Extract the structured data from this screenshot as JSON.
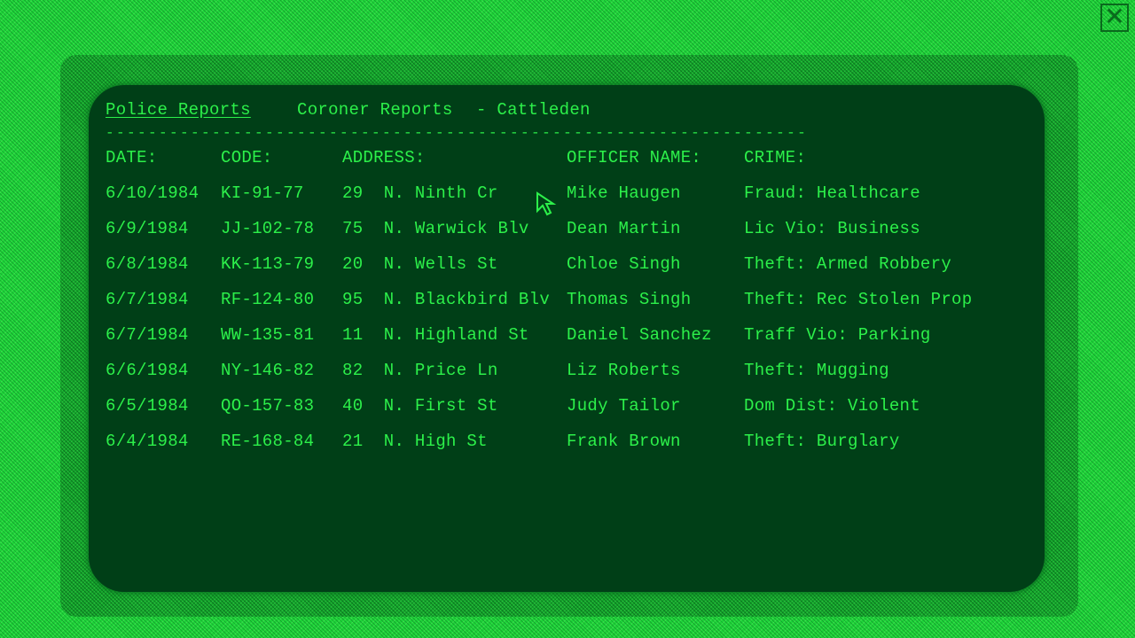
{
  "window": {
    "close_icon": "close-icon"
  },
  "nav": {
    "tabs": [
      {
        "label": "Police Reports",
        "active": true
      },
      {
        "label": "Coroner Reports",
        "active": false
      }
    ],
    "location": "- Cattleden",
    "divider": "------------------------------------------------------------------"
  },
  "table": {
    "headers": [
      "DATE:",
      "CODE:",
      "ADDRESS:",
      "OFFICER NAME:",
      "CRIME:"
    ],
    "rows": [
      [
        "6/10/1984",
        "KI-91-77",
        "29  N. Ninth Cr",
        "Mike Haugen",
        "Fraud: Healthcare"
      ],
      [
        "6/9/1984",
        "JJ-102-78",
        "75  N. Warwick Blv",
        "Dean Martin",
        "Lic Vio: Business"
      ],
      [
        "6/8/1984",
        "KK-113-79",
        "20  N. Wells St",
        "Chloe Singh",
        "Theft: Armed Robbery"
      ],
      [
        "6/7/1984",
        "RF-124-80",
        "95  N. Blackbird Blv",
        "Thomas Singh",
        "Theft: Rec Stolen Prop"
      ],
      [
        "6/7/1984",
        "WW-135-81",
        "11  N. Highland St",
        "Daniel Sanchez",
        "Traff Vio: Parking"
      ],
      [
        "6/6/1984",
        "NY-146-82",
        "82  N. Price Ln",
        "Liz Roberts",
        "Theft: Mugging"
      ],
      [
        "6/5/1984",
        "QO-157-83",
        "40  N. First St",
        "Judy Tailor",
        "Dom Dist: Violent"
      ],
      [
        "6/4/1984",
        "RE-168-84",
        "21  N. High St",
        "Frank Brown",
        "Theft: Burglary"
      ]
    ]
  },
  "colors": {
    "text": "#2cf04a",
    "screen": "#003f17",
    "background": "#1fd43a"
  }
}
